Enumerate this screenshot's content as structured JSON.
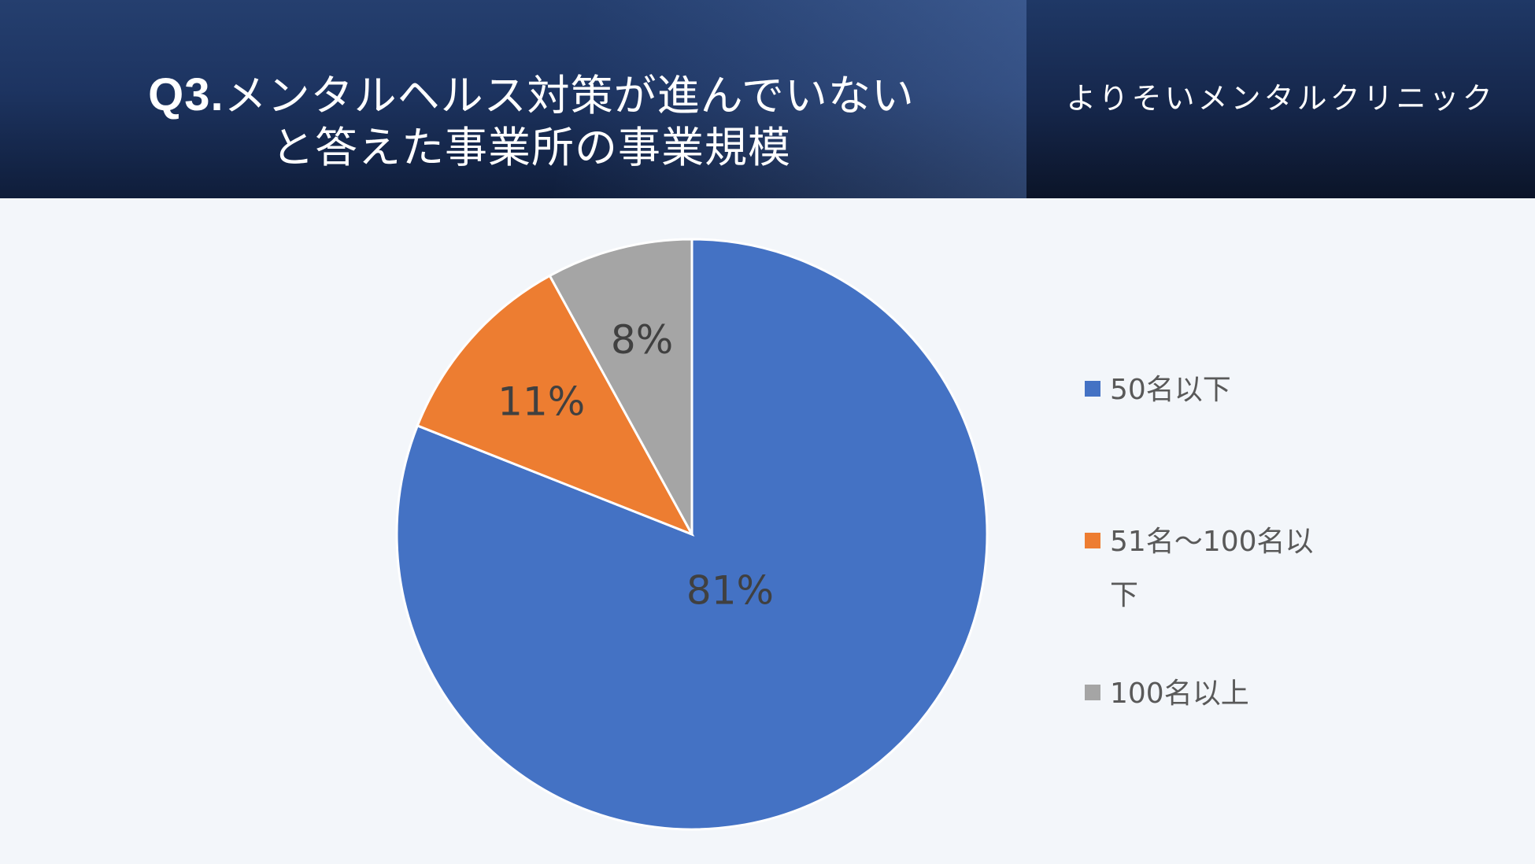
{
  "header": {
    "title_q": "Q3.",
    "title_line1": "メンタルヘルス対策が進んでいない",
    "title_line2": "と答えた事業所の事業規模",
    "brand": "よりそいメンタルクリニック"
  },
  "chart_data": {
    "type": "pie",
    "categories": [
      "50名以下",
      "51名～100名以下",
      "100名以上"
    ],
    "values": [
      81,
      11,
      8
    ],
    "data_labels": [
      "81%",
      "11%",
      "8%"
    ],
    "colors": [
      "#4472c4",
      "#ed7d31",
      "#a5a5a5"
    ],
    "legend_lines": [
      [
        "50名以下"
      ],
      [
        "51名～100名以",
        "下"
      ],
      [
        "100名以上"
      ]
    ],
    "legend_placement": "right",
    "start": "12 o'clock, clockwise"
  }
}
